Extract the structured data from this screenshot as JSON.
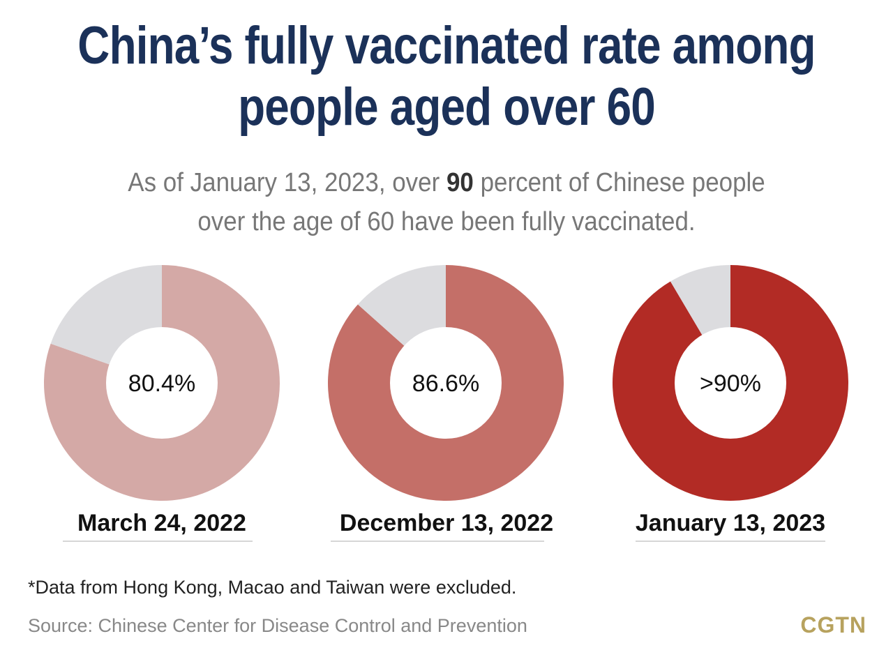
{
  "title_line1": "China’s fully vaccinated rate among",
  "title_line2": "people aged over 60",
  "subtitle": {
    "line1_before": "As of January 13, 2023, over ",
    "line1_highlight": "90",
    "line1_after": " percent of Chinese people",
    "line2": "over the age of 60 have been fully vaccinated."
  },
  "chart_data": [
    {
      "type": "pie",
      "variant": "donut",
      "date_label": "March 24, 2022",
      "value_label": "80.4%",
      "value": 80.4,
      "remainder": 19.6,
      "color": "#d4a9a6",
      "remainder_color": "#dcdcdf"
    },
    {
      "type": "pie",
      "variant": "donut",
      "date_label": "December 13, 2022",
      "value_label": "86.6%",
      "value": 86.6,
      "remainder": 13.4,
      "color": "#c46f68",
      "remainder_color": "#dcdcdf"
    },
    {
      "type": "pie",
      "variant": "donut",
      "date_label": "January 13, 2023",
      "value_label": ">90%",
      "value": 91.5,
      "remainder": 8.5,
      "color": "#b22b25",
      "remainder_color": "#dcdcdf"
    }
  ],
  "footnote": "*Data from Hong Kong, Macao and Taiwan were excluded.",
  "source": "Source: Chinese Center for Disease Control and Prevention",
  "logo_text": "CGTN",
  "colors": {
    "title": "#1b3159",
    "logo": "#b7a25e"
  }
}
